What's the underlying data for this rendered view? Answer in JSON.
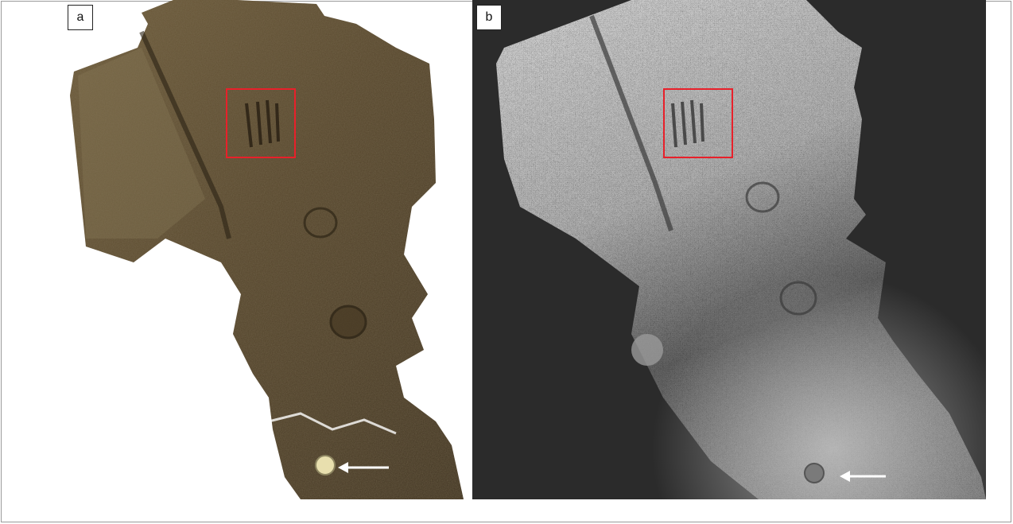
{
  "figure": {
    "panels": [
      {
        "label": "a",
        "description_name": "photogrammetric-textured-model",
        "colors": {
          "surface": "#5b4a30",
          "surface_dark": "#3f3320",
          "surface_light": "#7a6744"
        }
      },
      {
        "label": "b",
        "description_name": "point-cloud-model",
        "colors": {
          "background": "#2b2b2b",
          "surface_light": "#d9d9d9",
          "surface_dark": "#4a4a4a"
        }
      }
    ],
    "annotation_colors": {
      "roi_box": "#e8202a",
      "arrow": "#ffffff"
    },
    "icons": {
      "marker_arrow": "left-arrow-icon"
    }
  }
}
